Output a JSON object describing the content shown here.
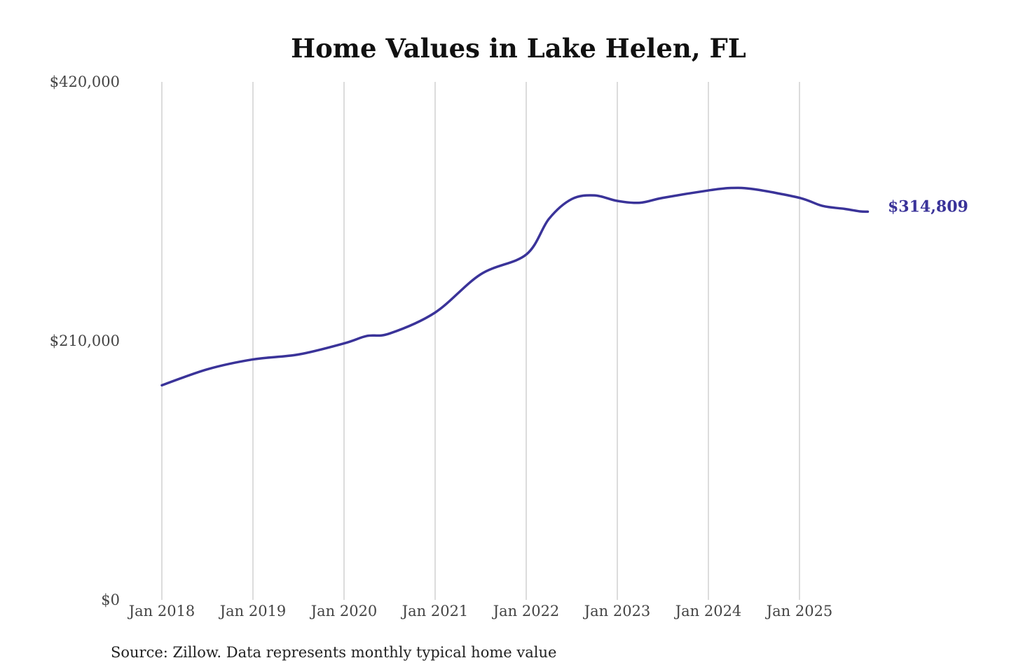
{
  "chart_data": {
    "type": "line",
    "title": "Home Values in Lake Helen, FL",
    "source": "Source: Zillow. Data represents monthly typical home value",
    "xlabel": "",
    "ylabel": "",
    "ylim": [
      0,
      420000
    ],
    "y_ticks": [
      0,
      210000,
      420000
    ],
    "y_tick_labels": [
      "$0",
      "$210,000",
      "$420,000"
    ],
    "x_tick_labels": [
      "Jan 2018",
      "Jan 2019",
      "Jan 2020",
      "Jan 2021",
      "Jan 2022",
      "Jan 2023",
      "Jan 2024",
      "Jan 2025"
    ],
    "grid": "vertical",
    "line_color": "#3a3399",
    "end_label": "$314,809",
    "x": [
      "2018-01",
      "2018-07",
      "2019-01",
      "2019-07",
      "2020-01",
      "2020-04",
      "2020-07",
      "2021-01",
      "2021-07",
      "2022-01",
      "2022-04",
      "2022-07",
      "2022-10",
      "2023-01",
      "2023-04",
      "2023-07",
      "2024-01",
      "2024-04",
      "2024-07",
      "2025-01",
      "2025-04",
      "2025-07",
      "2025-09",
      "2025-10"
    ],
    "values": [
      174000,
      187000,
      195000,
      199000,
      208000,
      214000,
      216000,
      233000,
      264000,
      280000,
      309000,
      325000,
      328000,
      323500,
      322000,
      326000,
      332000,
      334000,
      333000,
      326000,
      319500,
      317000,
      315000,
      314809
    ]
  }
}
